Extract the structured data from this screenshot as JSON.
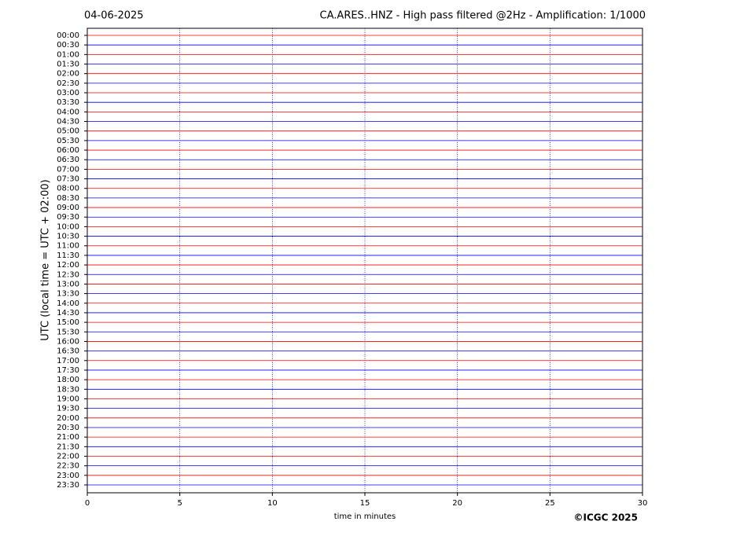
{
  "chart_data": {
    "type": "helicorder",
    "date": "04-06-2025",
    "title": "CA.ARES..HNZ - High pass filtered @2Hz - Amplification: 1/1000",
    "ylabel": "UTC (local time = UTC + 02:00)",
    "xlabel": "time in minutes",
    "copyright": "©ICGC 2025",
    "categories": [
      "00:00",
      "00:30",
      "01:00",
      "01:30",
      "02:00",
      "02:30",
      "03:00",
      "03:30",
      "04:00",
      "04:30",
      "05:00",
      "05:30",
      "06:00",
      "06:30",
      "07:00",
      "07:30",
      "08:00",
      "08:30",
      "09:00",
      "09:30",
      "10:00",
      "10:30",
      "11:00",
      "11:30",
      "12:00",
      "12:30",
      "13:00",
      "13:30",
      "14:00",
      "14:30",
      "15:00",
      "15:30",
      "16:00",
      "16:30",
      "17:00",
      "17:30",
      "18:00",
      "18:30",
      "19:00",
      "19:30",
      "20:00",
      "20:30",
      "21:00",
      "21:30",
      "22:00",
      "22:30",
      "23:00",
      "23:30"
    ],
    "trace_colors": [
      "#ff0000",
      "#0000ff"
    ],
    "xlim": [
      0,
      30
    ],
    "xticks": [
      0,
      5,
      10,
      15,
      20,
      25,
      30
    ],
    "grid": true
  }
}
